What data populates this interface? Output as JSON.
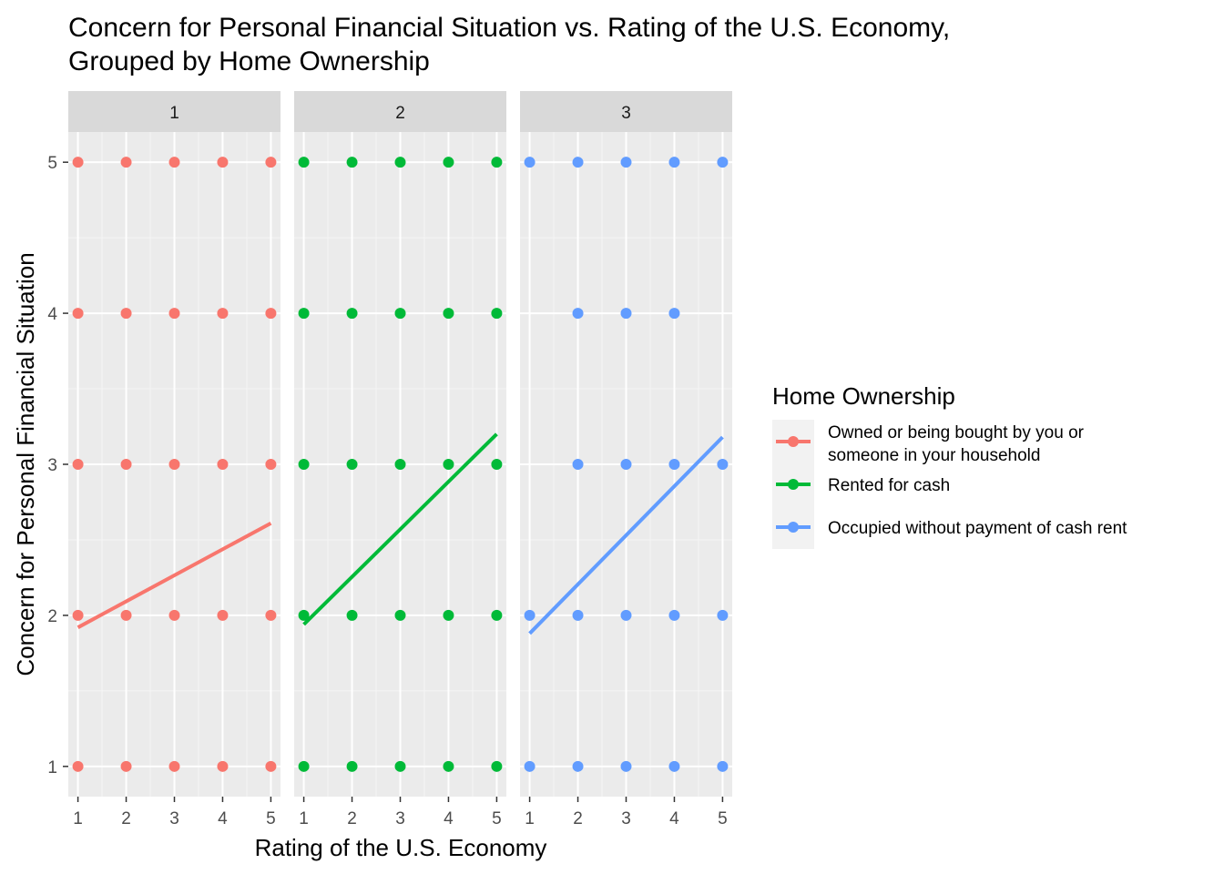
{
  "chart_data": {
    "type": "scatter",
    "title_lines": [
      "Concern for Personal Financial Situation vs. Rating of the U.S. Economy,",
      "Grouped by Home Ownership"
    ],
    "xlabel": "Rating of the U.S. Economy",
    "ylabel": "Concern for Personal Financial Situation",
    "xlim": [
      0.8,
      5.2
    ],
    "ylim": [
      0.8,
      5.2
    ],
    "x_ticks": [
      1,
      2,
      3,
      4,
      5
    ],
    "y_ticks": [
      1,
      2,
      3,
      4,
      5
    ],
    "grid": true,
    "facets": [
      {
        "label": "1",
        "series": "Owned or being bought by you or someone in your household",
        "color": "#F8766D",
        "points": [
          [
            1,
            1
          ],
          [
            1,
            2
          ],
          [
            1,
            3
          ],
          [
            1,
            4
          ],
          [
            1,
            5
          ],
          [
            2,
            1
          ],
          [
            2,
            2
          ],
          [
            2,
            3
          ],
          [
            2,
            4
          ],
          [
            2,
            5
          ],
          [
            3,
            1
          ],
          [
            3,
            2
          ],
          [
            3,
            3
          ],
          [
            3,
            4
          ],
          [
            3,
            5
          ],
          [
            4,
            1
          ],
          [
            4,
            2
          ],
          [
            4,
            3
          ],
          [
            4,
            4
          ],
          [
            4,
            5
          ],
          [
            5,
            1
          ],
          [
            5,
            2
          ],
          [
            5,
            3
          ],
          [
            5,
            4
          ],
          [
            5,
            5
          ]
        ],
        "fit": {
          "x": [
            1,
            5
          ],
          "y": [
            1.92,
            2.61
          ]
        }
      },
      {
        "label": "2",
        "series": "Rented for cash",
        "color": "#00BA38",
        "points": [
          [
            1,
            1
          ],
          [
            1,
            2
          ],
          [
            1,
            3
          ],
          [
            1,
            4
          ],
          [
            1,
            5
          ],
          [
            2,
            1
          ],
          [
            2,
            2
          ],
          [
            2,
            3
          ],
          [
            2,
            4
          ],
          [
            2,
            5
          ],
          [
            3,
            1
          ],
          [
            3,
            2
          ],
          [
            3,
            3
          ],
          [
            3,
            4
          ],
          [
            3,
            5
          ],
          [
            4,
            1
          ],
          [
            4,
            2
          ],
          [
            4,
            3
          ],
          [
            4,
            4
          ],
          [
            4,
            5
          ],
          [
            5,
            1
          ],
          [
            5,
            2
          ],
          [
            5,
            3
          ],
          [
            5,
            4
          ],
          [
            5,
            5
          ]
        ],
        "fit": {
          "x": [
            1,
            5
          ],
          "y": [
            1.94,
            3.2
          ]
        }
      },
      {
        "label": "3",
        "series": "Occupied without payment of cash rent",
        "color": "#619CFF",
        "points": [
          [
            1,
            1
          ],
          [
            1,
            2
          ],
          [
            1,
            5
          ],
          [
            2,
            1
          ],
          [
            2,
            2
          ],
          [
            2,
            3
          ],
          [
            2,
            4
          ],
          [
            2,
            5
          ],
          [
            3,
            1
          ],
          [
            3,
            2
          ],
          [
            3,
            3
          ],
          [
            3,
            4
          ],
          [
            3,
            5
          ],
          [
            4,
            1
          ],
          [
            4,
            2
          ],
          [
            4,
            3
          ],
          [
            4,
            4
          ],
          [
            4,
            5
          ],
          [
            5,
            1
          ],
          [
            5,
            2
          ],
          [
            5,
            3
          ],
          [
            5,
            5
          ]
        ],
        "fit": {
          "x": [
            1,
            5
          ],
          "y": [
            1.88,
            3.18
          ]
        }
      }
    ],
    "legend": {
      "title": "Home Ownership",
      "position": "right",
      "entries": [
        {
          "lines": [
            "Owned or being bought by you or",
            "someone in your household"
          ],
          "color": "#F8766D"
        },
        {
          "lines": [
            "Rented for cash"
          ],
          "color": "#00BA38"
        },
        {
          "lines": [
            "Occupied without payment of cash rent"
          ],
          "color": "#619CFF"
        }
      ]
    }
  }
}
